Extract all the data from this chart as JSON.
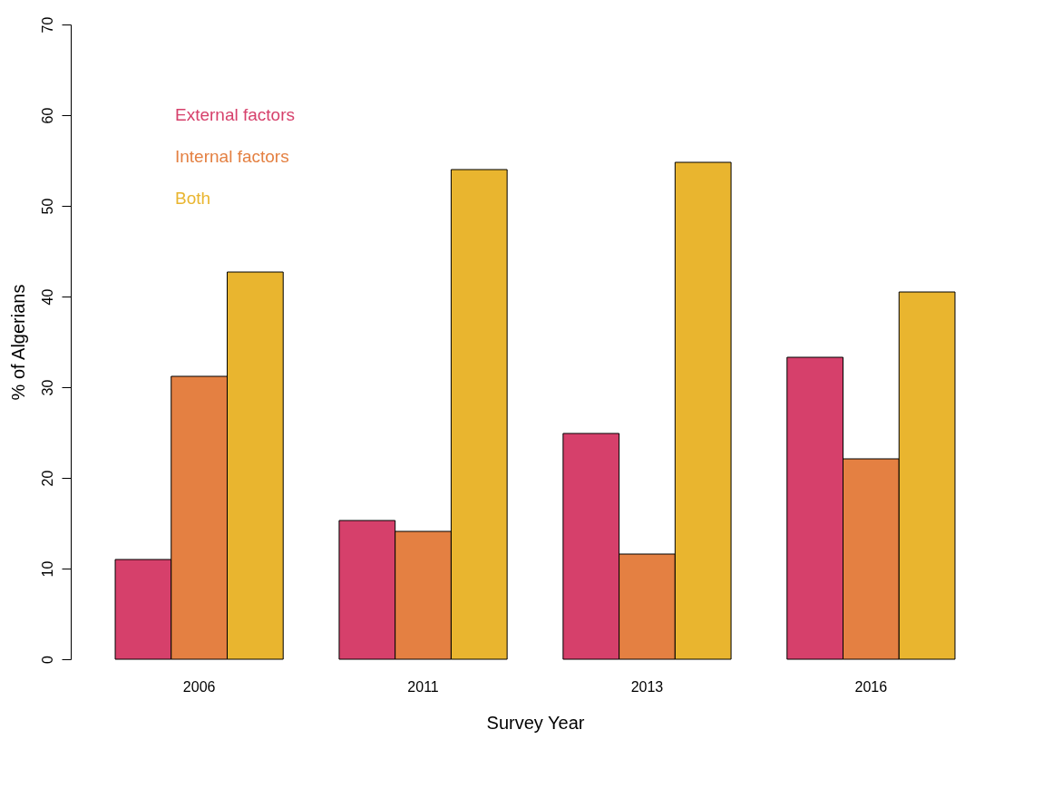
{
  "chart_data": {
    "type": "bar",
    "xlabel": "Survey Year",
    "ylabel": "% of Algerians",
    "categories": [
      "2006",
      "2011",
      "2013",
      "2016"
    ],
    "series": [
      {
        "name": "External factors",
        "color": "#d6406b",
        "values": [
          11.0,
          15.3,
          24.9,
          33.3
        ]
      },
      {
        "name": "Internal factors",
        "color": "#e48042",
        "values": [
          31.2,
          14.1,
          11.6,
          22.1
        ]
      },
      {
        "name": "Both",
        "color": "#e9b52f",
        "values": [
          42.7,
          54.0,
          54.8,
          40.5
        ]
      }
    ],
    "ylim": [
      0,
      70
    ],
    "yticks": [
      0,
      10,
      20,
      30,
      40,
      50,
      60,
      70
    ],
    "grid": false,
    "legend": "top left"
  }
}
